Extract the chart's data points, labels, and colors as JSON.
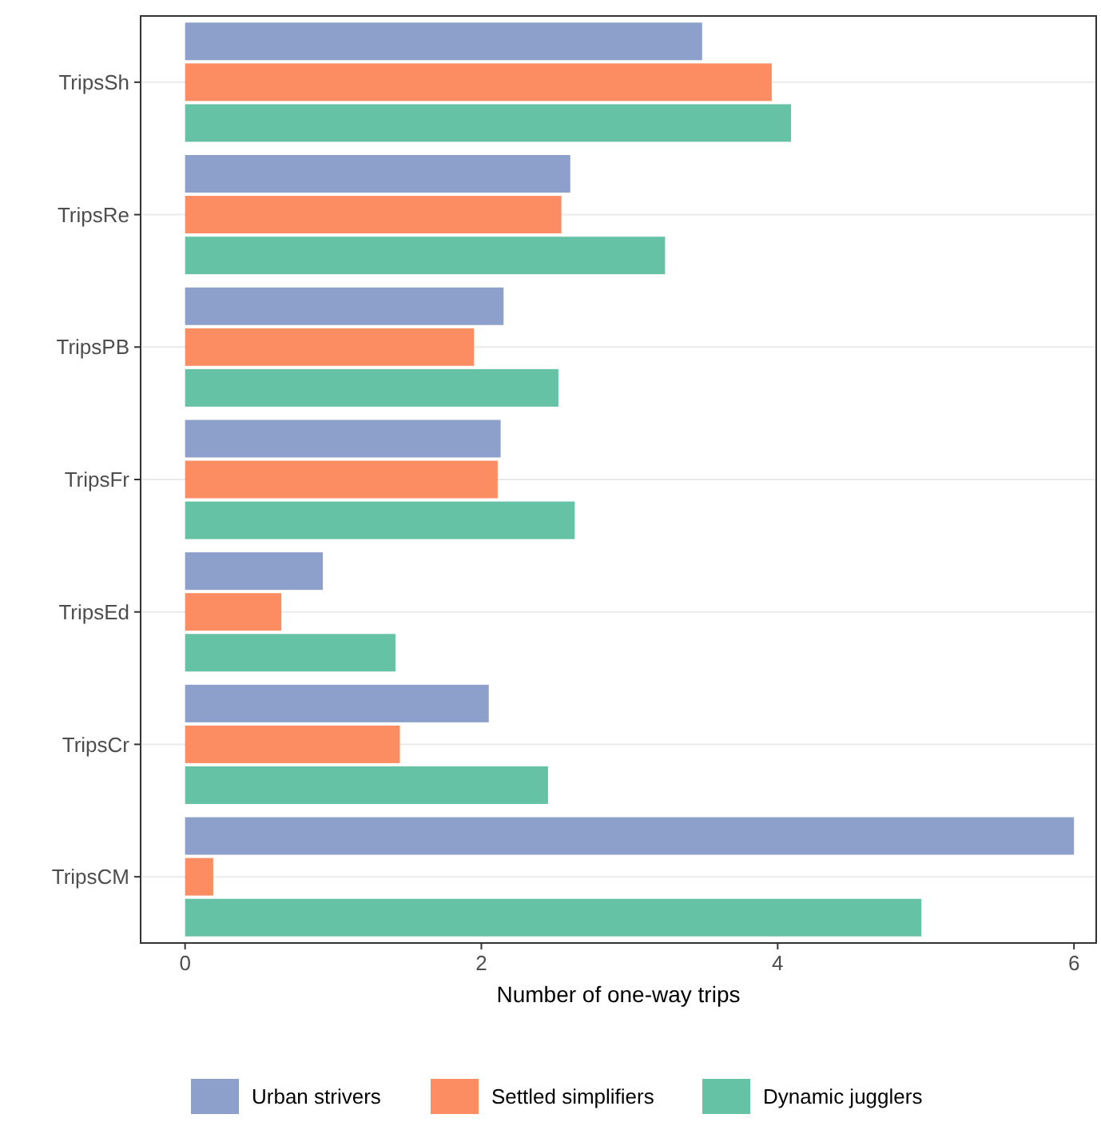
{
  "chart_data": {
    "type": "bar",
    "orientation": "horizontal",
    "xlabel": "Number of one-way trips",
    "categories": [
      "TripsSh",
      "TripsRe",
      "TripsPB",
      "TripsFr",
      "TripsEd",
      "TripsCr",
      "TripsCM"
    ],
    "series": [
      {
        "name": "Urban strivers",
        "color": "#8da0cb",
        "values": [
          3.49,
          2.6,
          2.15,
          2.13,
          0.93,
          2.05,
          6.0
        ]
      },
      {
        "name": "Settled simplifiers",
        "color": "#fc8d62",
        "values": [
          3.96,
          2.54,
          1.95,
          2.11,
          0.65,
          1.45,
          0.19
        ]
      },
      {
        "name": "Dynamic jugglers",
        "color": "#66c2a5",
        "values": [
          4.09,
          3.24,
          2.52,
          2.63,
          1.42,
          2.45,
          4.97
        ]
      }
    ],
    "xlim": [
      -0.3,
      6.15
    ],
    "xticks": [
      0,
      2,
      4,
      6
    ],
    "grid": "y",
    "legend": "bottom"
  }
}
